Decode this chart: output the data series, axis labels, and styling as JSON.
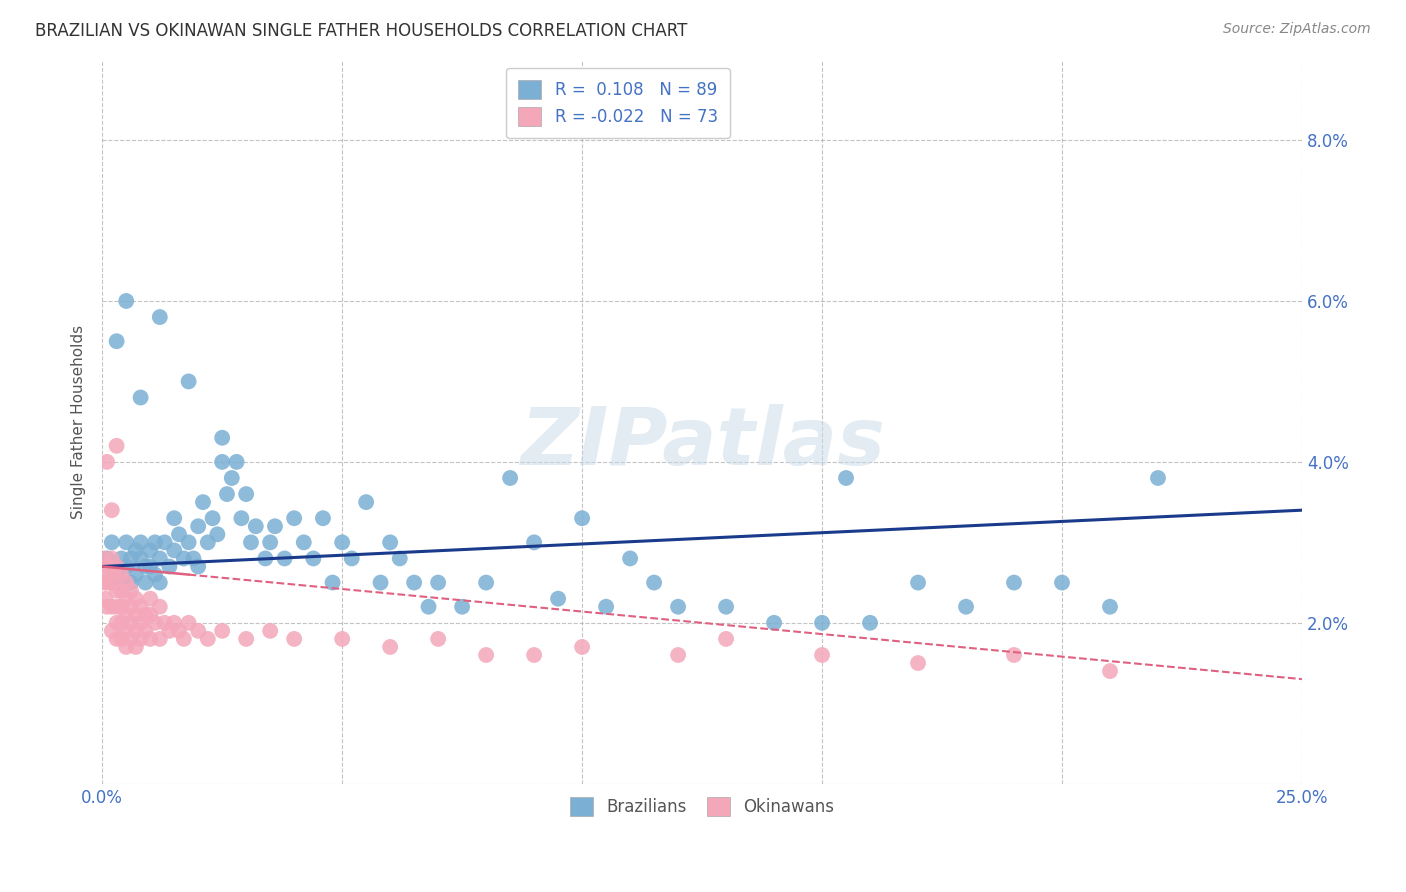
{
  "title": "BRAZILIAN VS OKINAWAN SINGLE FATHER HOUSEHOLDS CORRELATION CHART",
  "source": "Source: ZipAtlas.com",
  "ylabel": "Single Father Households",
  "xlim": [
    0.0,
    0.25
  ],
  "ylim": [
    0.0,
    0.09
  ],
  "brazil_color": "#7bafd4",
  "okinawa_color": "#f4a7b9",
  "brazil_line_color": "#1a3a8c",
  "okinawa_line_color": "#e06080",
  "watermark": "ZIPatlas",
  "brazil_points_x": [
    0.001,
    0.002,
    0.002,
    0.003,
    0.003,
    0.004,
    0.004,
    0.005,
    0.005,
    0.006,
    0.006,
    0.007,
    0.007,
    0.008,
    0.008,
    0.009,
    0.009,
    0.01,
    0.01,
    0.011,
    0.011,
    0.012,
    0.012,
    0.013,
    0.014,
    0.015,
    0.015,
    0.016,
    0.017,
    0.018,
    0.019,
    0.02,
    0.02,
    0.021,
    0.022,
    0.023,
    0.024,
    0.025,
    0.026,
    0.027,
    0.028,
    0.029,
    0.03,
    0.031,
    0.032,
    0.034,
    0.035,
    0.036,
    0.038,
    0.04,
    0.042,
    0.044,
    0.046,
    0.048,
    0.05,
    0.052,
    0.055,
    0.058,
    0.06,
    0.062,
    0.065,
    0.068,
    0.07,
    0.075,
    0.08,
    0.085,
    0.09,
    0.095,
    0.1,
    0.105,
    0.11,
    0.115,
    0.12,
    0.13,
    0.14,
    0.15,
    0.16,
    0.17,
    0.18,
    0.19,
    0.2,
    0.21,
    0.22,
    0.003,
    0.005,
    0.008,
    0.012,
    0.018,
    0.025,
    0.155
  ],
  "brazil_points_y": [
    0.028,
    0.03,
    0.025,
    0.027,
    0.026,
    0.025,
    0.028,
    0.03,
    0.027,
    0.028,
    0.025,
    0.029,
    0.026,
    0.03,
    0.028,
    0.027,
    0.025,
    0.029,
    0.027,
    0.03,
    0.026,
    0.028,
    0.025,
    0.03,
    0.027,
    0.033,
    0.029,
    0.031,
    0.028,
    0.03,
    0.028,
    0.032,
    0.027,
    0.035,
    0.03,
    0.033,
    0.031,
    0.04,
    0.036,
    0.038,
    0.04,
    0.033,
    0.036,
    0.03,
    0.032,
    0.028,
    0.03,
    0.032,
    0.028,
    0.033,
    0.03,
    0.028,
    0.033,
    0.025,
    0.03,
    0.028,
    0.035,
    0.025,
    0.03,
    0.028,
    0.025,
    0.022,
    0.025,
    0.022,
    0.025,
    0.038,
    0.03,
    0.023,
    0.033,
    0.022,
    0.028,
    0.025,
    0.022,
    0.022,
    0.02,
    0.02,
    0.02,
    0.025,
    0.022,
    0.025,
    0.025,
    0.022,
    0.038,
    0.055,
    0.06,
    0.048,
    0.058,
    0.05,
    0.043,
    0.038
  ],
  "okinawa_points_x": [
    0.0003,
    0.0005,
    0.0007,
    0.001,
    0.001,
    0.001,
    0.0015,
    0.002,
    0.002,
    0.002,
    0.002,
    0.0025,
    0.003,
    0.003,
    0.003,
    0.003,
    0.003,
    0.004,
    0.004,
    0.004,
    0.004,
    0.004,
    0.005,
    0.005,
    0.005,
    0.005,
    0.005,
    0.006,
    0.006,
    0.006,
    0.006,
    0.007,
    0.007,
    0.007,
    0.007,
    0.008,
    0.008,
    0.008,
    0.009,
    0.009,
    0.01,
    0.01,
    0.01,
    0.011,
    0.012,
    0.012,
    0.013,
    0.014,
    0.015,
    0.016,
    0.017,
    0.018,
    0.02,
    0.022,
    0.025,
    0.03,
    0.035,
    0.04,
    0.05,
    0.06,
    0.07,
    0.08,
    0.09,
    0.1,
    0.12,
    0.13,
    0.15,
    0.17,
    0.19,
    0.21,
    0.001,
    0.002,
    0.003
  ],
  "okinawa_points_y": [
    0.028,
    0.025,
    0.023,
    0.027,
    0.025,
    0.022,
    0.026,
    0.028,
    0.025,
    0.022,
    0.019,
    0.026,
    0.027,
    0.024,
    0.022,
    0.02,
    0.018,
    0.026,
    0.024,
    0.022,
    0.02,
    0.018,
    0.025,
    0.023,
    0.021,
    0.019,
    0.017,
    0.024,
    0.022,
    0.02,
    0.018,
    0.023,
    0.021,
    0.019,
    0.017,
    0.022,
    0.02,
    0.018,
    0.021,
    0.019,
    0.023,
    0.021,
    0.018,
    0.02,
    0.022,
    0.018,
    0.02,
    0.019,
    0.02,
    0.019,
    0.018,
    0.02,
    0.019,
    0.018,
    0.019,
    0.018,
    0.019,
    0.018,
    0.018,
    0.017,
    0.018,
    0.016,
    0.016,
    0.017,
    0.016,
    0.018,
    0.016,
    0.015,
    0.016,
    0.014,
    0.04,
    0.034,
    0.042
  ]
}
